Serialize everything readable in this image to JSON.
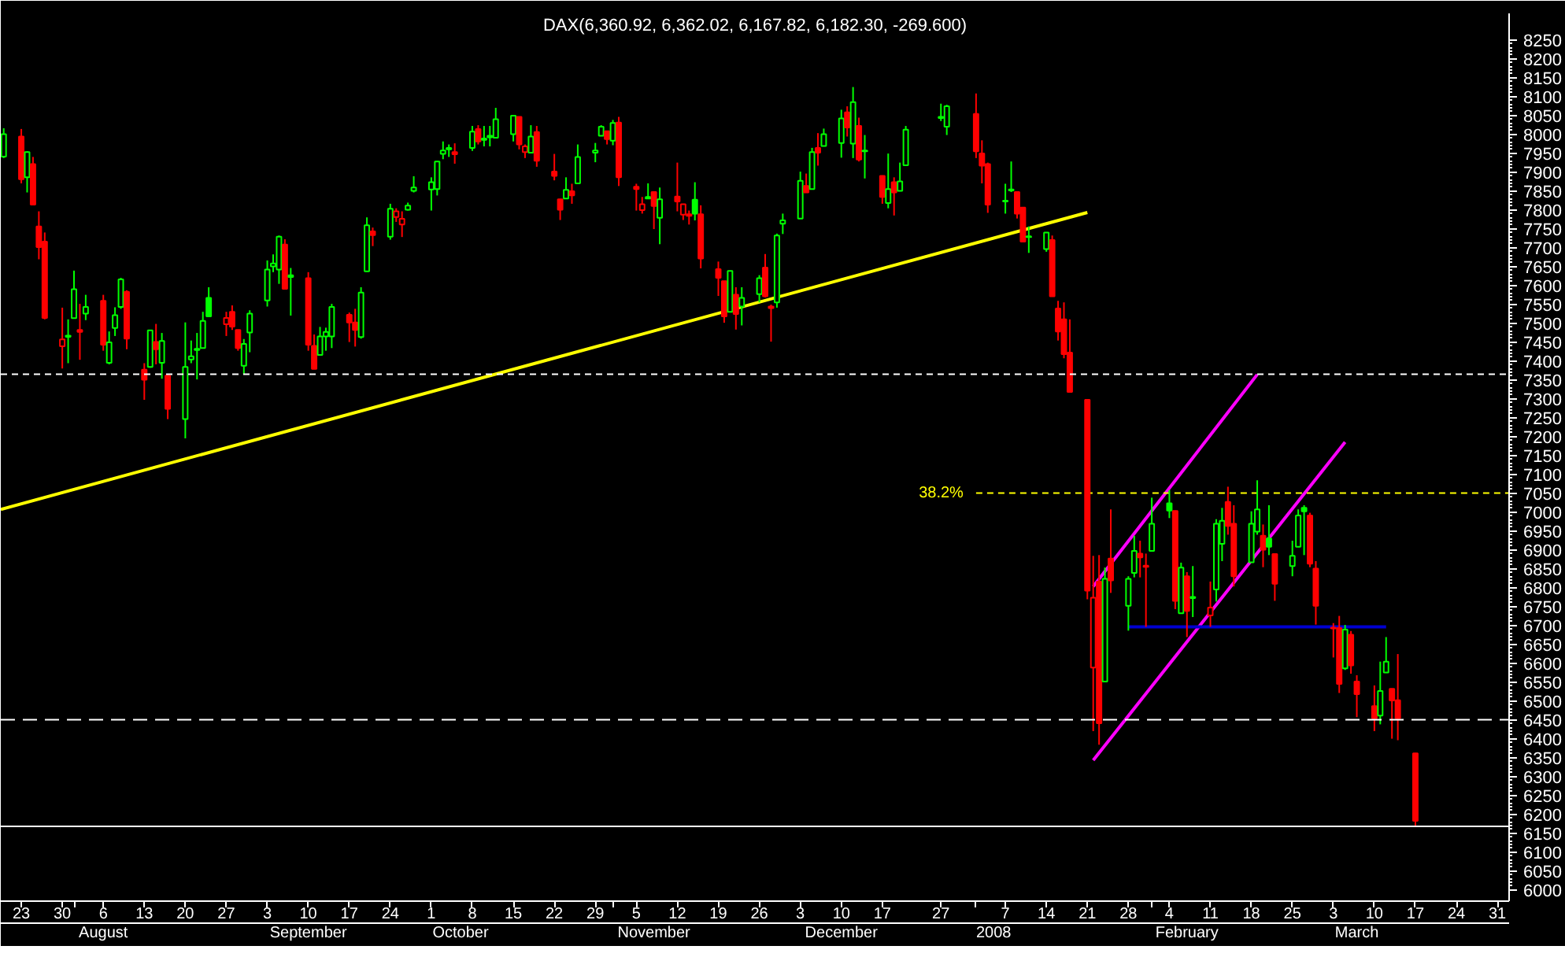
{
  "chart_data": {
    "type": "candlestick",
    "title": "DAX(6,360.92, 6,362.02, 6,167.82, 6,182.30, -269.600)",
    "x": [
      "2007-07-20",
      "2007-07-23",
      "2007-07-24",
      "2007-07-25",
      "2007-07-26",
      "2007-07-27",
      "2007-07-30",
      "2007-07-31",
      "2007-08-01",
      "2007-08-02",
      "2007-08-03",
      "2007-08-06",
      "2007-08-07",
      "2007-08-08",
      "2007-08-09",
      "2007-08-10",
      "2007-08-13",
      "2007-08-14",
      "2007-08-15",
      "2007-08-16",
      "2007-08-17",
      "2007-08-20",
      "2007-08-21",
      "2007-08-22",
      "2007-08-23",
      "2007-08-24",
      "2007-08-27",
      "2007-08-28",
      "2007-08-29",
      "2007-08-30",
      "2007-08-31",
      "2007-09-03",
      "2007-09-04",
      "2007-09-05",
      "2007-09-06",
      "2007-09-07",
      "2007-09-10",
      "2007-09-11",
      "2007-09-12",
      "2007-09-13",
      "2007-09-14",
      "2007-09-17",
      "2007-09-18",
      "2007-09-19",
      "2007-09-20",
      "2007-09-21",
      "2007-09-24",
      "2007-09-25",
      "2007-09-26",
      "2007-09-27",
      "2007-09-28",
      "2007-10-01",
      "2007-10-02",
      "2007-10-03",
      "2007-10-04",
      "2007-10-05",
      "2007-10-08",
      "2007-10-09",
      "2007-10-10",
      "2007-10-11",
      "2007-10-12",
      "2007-10-15",
      "2007-10-16",
      "2007-10-17",
      "2007-10-18",
      "2007-10-19",
      "2007-10-22",
      "2007-10-23",
      "2007-10-24",
      "2007-10-25",
      "2007-10-26",
      "2007-10-29",
      "2007-10-30",
      "2007-10-31",
      "2007-11-01",
      "2007-11-02",
      "2007-11-05",
      "2007-11-06",
      "2007-11-07",
      "2007-11-08",
      "2007-11-09",
      "2007-11-12",
      "2007-11-13",
      "2007-11-14",
      "2007-11-15",
      "2007-11-16",
      "2007-11-19",
      "2007-11-20",
      "2007-11-21",
      "2007-11-22",
      "2007-11-23",
      "2007-11-26",
      "2007-11-27",
      "2007-11-28",
      "2007-11-29",
      "2007-11-30",
      "2007-12-03",
      "2007-12-04",
      "2007-12-05",
      "2007-12-06",
      "2007-12-07",
      "2007-12-10",
      "2007-12-11",
      "2007-12-12",
      "2007-12-13",
      "2007-12-14",
      "2007-12-17",
      "2007-12-18",
      "2007-12-19",
      "2007-12-20",
      "2007-12-21",
      "2007-12-27",
      "2007-12-28",
      "2008-01-02",
      "2008-01-03",
      "2008-01-04",
      "2008-01-07",
      "2008-01-08",
      "2008-01-09",
      "2008-01-10",
      "2008-01-11",
      "2008-01-14",
      "2008-01-15",
      "2008-01-16",
      "2008-01-17",
      "2008-01-18",
      "2008-01-21",
      "2008-01-22",
      "2008-01-23",
      "2008-01-24",
      "2008-01-25",
      "2008-01-28",
      "2008-01-29",
      "2008-01-30",
      "2008-01-31",
      "2008-02-01",
      "2008-02-04",
      "2008-02-05",
      "2008-02-06",
      "2008-02-07",
      "2008-02-08",
      "2008-02-11",
      "2008-02-12",
      "2008-02-13",
      "2008-02-14",
      "2008-02-15",
      "2008-02-18",
      "2008-02-19",
      "2008-02-20",
      "2008-02-21",
      "2008-02-22",
      "2008-02-25",
      "2008-02-26",
      "2008-02-27",
      "2008-02-28",
      "2008-02-29",
      "2008-03-03",
      "2008-03-04",
      "2008-03-05",
      "2008-03-06",
      "2008-03-07",
      "2008-03-10",
      "2008-03-11",
      "2008-03-12",
      "2008-03-13",
      "2008-03-14",
      "2008-03-17"
    ],
    "ohlc": [
      [
        7941,
        8016,
        7937,
        8000
      ],
      [
        7994,
        8014,
        7870,
        7881
      ],
      [
        7886,
        7955,
        7846,
        7953
      ],
      [
        7921,
        7940,
        7812,
        7814
      ],
      [
        7756,
        7796,
        7669,
        7701
      ],
      [
        7716,
        7740,
        7510,
        7514
      ],
      [
        7439,
        7541,
        7380,
        7457
      ],
      [
        7464,
        7510,
        7394,
        7467
      ],
      [
        7513,
        7639,
        7512,
        7590
      ],
      [
        7482,
        7551,
        7403,
        7477
      ],
      [
        7525,
        7575,
        7508,
        7543
      ],
      [
        7559,
        7575,
        7427,
        7443
      ],
      [
        7395,
        7478,
        7391,
        7449
      ],
      [
        7487,
        7542,
        7466,
        7521
      ],
      [
        7543,
        7620,
        7538,
        7616
      ],
      [
        7583,
        7587,
        7431,
        7459
      ],
      [
        7377,
        7394,
        7297,
        7350
      ],
      [
        7384,
        7482,
        7382,
        7481
      ],
      [
        7450,
        7498,
        7391,
        7431
      ],
      [
        7395,
        7474,
        7353,
        7453
      ],
      [
        7361,
        7362,
        7246,
        7273
      ],
      [
        7246,
        7502,
        7195,
        7384
      ],
      [
        7404,
        7454,
        7394,
        7412
      ],
      [
        7429,
        7474,
        7351,
        7432
      ],
      [
        7434,
        7530,
        7433,
        7506
      ],
      [
        7567,
        7595,
        7517,
        7518
      ],
      [
        7497,
        7530,
        7466,
        7514
      ],
      [
        7530,
        7547,
        7482,
        7491
      ],
      [
        7482,
        7483,
        7427,
        7434
      ],
      [
        7387,
        7458,
        7364,
        7445
      ],
      [
        7475,
        7534,
        7423,
        7525
      ],
      [
        7560,
        7666,
        7544,
        7642
      ],
      [
        7650,
        7682,
        7635,
        7658
      ],
      [
        7642,
        7732,
        7604,
        7729
      ],
      [
        7708,
        7722,
        7590,
        7591
      ],
      [
        7627,
        7646,
        7520,
        7622
      ],
      [
        7619,
        7635,
        7427,
        7443
      ],
      [
        7440,
        7470,
        7378,
        7379
      ],
      [
        7416,
        7490,
        7415,
        7465
      ],
      [
        7465,
        7488,
        7427,
        7477
      ],
      [
        7465,
        7551,
        7434,
        7543
      ],
      [
        7522,
        7528,
        7450,
        7502
      ],
      [
        7502,
        7538,
        7438,
        7482
      ],
      [
        7463,
        7595,
        7459,
        7581
      ],
      [
        7637,
        7780,
        7636,
        7759
      ],
      [
        7743,
        7753,
        7704,
        7733
      ],
      [
        7729,
        7816,
        7721,
        7803
      ],
      [
        7781,
        7804,
        7768,
        7796
      ],
      [
        7761,
        7796,
        7728,
        7776
      ],
      [
        7800,
        7819,
        7798,
        7811
      ],
      [
        7850,
        7889,
        7846,
        7859
      ],
      [
        7854,
        7886,
        7798,
        7873
      ],
      [
        7855,
        7929,
        7838,
        7928
      ],
      [
        7948,
        7981,
        7934,
        7957
      ],
      [
        7960,
        7973,
        7940,
        7964
      ],
      [
        7953,
        7976,
        7922,
        7947
      ],
      [
        7964,
        8022,
        7956,
        8007
      ],
      [
        8014,
        8024,
        7973,
        7981
      ],
      [
        7985,
        8022,
        7968,
        7989
      ],
      [
        7992,
        8022,
        7968,
        7996
      ],
      [
        7991,
        8070,
        7990,
        8040
      ],
      [
        8000,
        8050,
        7981,
        8049
      ],
      [
        8046,
        8047,
        7960,
        7973
      ],
      [
        7953,
        7973,
        7937,
        7968
      ],
      [
        7951,
        8024,
        7950,
        7994
      ],
      [
        8006,
        8022,
        7914,
        7930
      ],
      [
        7901,
        7948,
        7878,
        7890
      ],
      [
        7828,
        7829,
        7773,
        7800
      ],
      [
        7830,
        7886,
        7829,
        7853
      ],
      [
        7849,
        7869,
        7816,
        7838
      ],
      [
        7870,
        7973,
        7869,
        7940
      ],
      [
        7951,
        7977,
        7926,
        7957
      ],
      [
        7996,
        8024,
        7995,
        8020
      ],
      [
        8008,
        8009,
        7973,
        7987
      ],
      [
        7983,
        8038,
        7971,
        8030
      ],
      [
        8031,
        8046,
        7863,
        7886
      ],
      [
        7861,
        7869,
        7798,
        7855
      ],
      [
        7799,
        7834,
        7790,
        7815
      ],
      [
        7830,
        7870,
        7829,
        7834
      ],
      [
        7847,
        7848,
        7749,
        7810
      ],
      [
        7779,
        7859,
        7709,
        7828
      ],
      [
        7835,
        7925,
        7796,
        7822
      ],
      [
        7787,
        7816,
        7773,
        7815
      ],
      [
        7788,
        7798,
        7761,
        7784
      ],
      [
        7827,
        7873,
        7772,
        7790
      ],
      [
        7788,
        7812,
        7645,
        7671
      ],
      [
        7643,
        7663,
        7572,
        7620
      ],
      [
        7611,
        7612,
        7501,
        7518
      ],
      [
        7530,
        7639,
        7529,
        7638
      ],
      [
        7575,
        7595,
        7483,
        7524
      ],
      [
        7544,
        7595,
        7494,
        7567
      ],
      [
        7577,
        7627,
        7555,
        7619
      ],
      [
        7647,
        7683,
        7568,
        7571
      ],
      [
        7544,
        7549,
        7451,
        7540
      ],
      [
        7555,
        7737,
        7541,
        7732
      ],
      [
        7763,
        7790,
        7736,
        7772
      ],
      [
        7777,
        7901,
        7777,
        7877
      ],
      [
        7863,
        7896,
        7845,
        7846
      ],
      [
        7855,
        7964,
        7854,
        7953
      ],
      [
        7964,
        8003,
        7917,
        7951
      ],
      [
        7969,
        8015,
        7968,
        8000
      ],
      [
        7977,
        8065,
        7938,
        8042
      ],
      [
        8058,
        8074,
        7994,
        8018
      ],
      [
        7975,
        8125,
        7937,
        8085
      ],
      [
        8022,
        8044,
        7928,
        7933
      ],
      [
        7955,
        7998,
        7883,
        7957
      ],
      [
        7890,
        7891,
        7816,
        7834
      ],
      [
        7818,
        7949,
        7804,
        7855
      ],
      [
        7873,
        7886,
        7785,
        7846
      ],
      [
        7850,
        7925,
        7849,
        7875
      ],
      [
        7918,
        8022,
        7917,
        8012
      ],
      [
        8043,
        8081,
        8035,
        8046
      ],
      [
        8020,
        8078,
        7998,
        8074
      ],
      [
        8054,
        8108,
        7937,
        7955
      ],
      [
        7949,
        7984,
        7870,
        7917
      ],
      [
        7921,
        7925,
        7792,
        7814
      ],
      [
        7822,
        7869,
        7790,
        7824
      ],
      [
        7851,
        7928,
        7847,
        7854
      ],
      [
        7847,
        7848,
        7777,
        7790
      ],
      [
        7806,
        7807,
        7715,
        7716
      ],
      [
        7728,
        7756,
        7686,
        7730
      ],
      [
        7696,
        7741,
        7689,
        7740
      ],
      [
        7720,
        7732,
        7570,
        7571
      ],
      [
        7539,
        7559,
        7454,
        7478
      ],
      [
        7510,
        7555,
        7407,
        7418
      ],
      [
        7422,
        7510,
        7317,
        7318
      ],
      [
        7297,
        7298,
        6769,
        6792
      ],
      [
        6588,
        6884,
        6420,
        6773
      ],
      [
        6816,
        6886,
        6384,
        6441
      ],
      [
        6551,
        6853,
        6550,
        6823
      ],
      [
        6877,
        7007,
        6786,
        6819
      ],
      [
        6752,
        6830,
        6686,
        6823
      ],
      [
        6839,
        6937,
        6827,
        6897
      ],
      [
        6890,
        6924,
        6827,
        6880
      ],
      [
        6858,
        6890,
        6696,
        6855
      ],
      [
        6897,
        7038,
        6896,
        6969
      ],
      [
        7023,
        7058,
        6984,
        7004
      ],
      [
        7003,
        7004,
        6743,
        6765
      ],
      [
        6732,
        6866,
        6731,
        6853
      ],
      [
        6830,
        6841,
        6669,
        6738
      ],
      [
        6772,
        6857,
        6722,
        6775
      ],
      [
        6726,
        6816,
        6696,
        6747
      ],
      [
        6795,
        6981,
        6763,
        6969
      ],
      [
        6916,
        7011,
        6870,
        6977
      ],
      [
        7027,
        7067,
        6940,
        6963
      ],
      [
        6969,
        7018,
        6803,
        6830
      ],
      [
        6867,
        7002,
        6866,
        6969
      ],
      [
        6948,
        7084,
        6940,
        7007
      ],
      [
        6937,
        6967,
        6854,
        6900
      ],
      [
        6930,
        7018,
        6886,
        6908
      ],
      [
        6889,
        6890,
        6765,
        6810
      ],
      [
        6857,
        6924,
        6830,
        6884
      ],
      [
        6908,
        7007,
        6907,
        6991
      ],
      [
        7011,
        7018,
        6886,
        7002
      ],
      [
        6991,
        6998,
        6854,
        6863
      ],
      [
        6850,
        6870,
        6702,
        6752
      ],
      [
        6694,
        6706,
        6615,
        6692
      ],
      [
        6693,
        6725,
        6521,
        6545
      ],
      [
        6586,
        6701,
        6582,
        6689
      ],
      [
        6675,
        6685,
        6572,
        6594
      ],
      [
        6551,
        6568,
        6457,
        6518
      ],
      [
        6486,
        6541,
        6420,
        6454
      ],
      [
        6461,
        6604,
        6438,
        6526
      ],
      [
        6575,
        6669,
        6574,
        6604
      ],
      [
        6532,
        6533,
        6400,
        6501
      ],
      [
        6502,
        6624,
        6396,
        6454
      ],
      [
        6360.92,
        6362.02,
        6167.82,
        6182.3
      ]
    ],
    "colors": [
      "#00ff00",
      "#ff0000",
      "#00ff00",
      "#ff0000",
      "#ff0000",
      "#ff0000",
      "#ff0000",
      "#00ff00",
      "#00ff00",
      "#ff0000",
      "#00ff00",
      "#ff0000",
      "#00ff00",
      "#00ff00",
      "#00ff00",
      "#ff0000",
      "#ff0000",
      "#00ff00",
      "#ff0000",
      "#00ff00",
      "#ff0000",
      "#00ff00",
      "#00ff00",
      "#00ff00",
      "#00ff00",
      "#00ff00",
      "#ff0000",
      "#ff0000",
      "#ff0000",
      "#00ff00",
      "#00ff00",
      "#00ff00",
      "#00ff00",
      "#00ff00",
      "#ff0000",
      "#00ff00",
      "#ff0000",
      "#ff0000",
      "#00ff00",
      "#00ff00",
      "#00ff00",
      "#ff0000",
      "#ff0000",
      "#00ff00",
      "#00ff00",
      "#ff0000",
      "#00ff00",
      "#ff0000",
      "#ff0000",
      "#00ff00",
      "#00ff00",
      "#00ff00",
      "#00ff00",
      "#00ff00",
      "#00ff00",
      "#ff0000",
      "#00ff00",
      "#ff0000",
      "#00ff00",
      "#00ff00",
      "#00ff00",
      "#00ff00",
      "#ff0000",
      "#ff0000",
      "#00ff00",
      "#ff0000",
      "#ff0000",
      "#ff0000",
      "#00ff00",
      "#ff0000",
      "#00ff00",
      "#00ff00",
      "#00ff00",
      "#ff0000",
      "#00ff00",
      "#ff0000",
      "#ff0000",
      "#ff0000",
      "#00ff00",
      "#ff0000",
      "#00ff00",
      "#ff0000",
      "#ff0000",
      "#ff0000",
      "#00ff00",
      "#ff0000",
      "#ff0000",
      "#ff0000",
      "#00ff00",
      "#ff0000",
      "#00ff00",
      "#00ff00",
      "#ff0000",
      "#ff0000",
      "#00ff00",
      "#00ff00",
      "#00ff00",
      "#ff0000",
      "#00ff00",
      "#ff0000",
      "#00ff00",
      "#00ff00",
      "#ff0000",
      "#00ff00",
      "#ff0000",
      "#00ff00",
      "#ff0000",
      "#00ff00",
      "#ff0000",
      "#00ff00",
      "#00ff00",
      "#00ff00",
      "#00ff00",
      "#ff0000",
      "#ff0000",
      "#ff0000",
      "#00ff00",
      "#00ff00",
      "#ff0000",
      "#ff0000",
      "#00ff00",
      "#00ff00",
      "#ff0000",
      "#ff0000",
      "#ff0000",
      "#ff0000",
      "#ff0000",
      "#ff0000",
      "#ff0000",
      "#00ff00",
      "#ff0000",
      "#00ff00",
      "#00ff00",
      "#ff0000",
      "#ff0000",
      "#00ff00",
      "#00ff00",
      "#ff0000",
      "#00ff00",
      "#ff0000",
      "#00ff00",
      "#ff0000",
      "#00ff00",
      "#00ff00",
      "#ff0000",
      "#ff0000",
      "#00ff00",
      "#00ff00",
      "#ff0000",
      "#00ff00",
      "#ff0000",
      "#00ff00",
      "#00ff00",
      "#00ff00",
      "#ff0000",
      "#ff0000",
      "#ff0000",
      "#ff0000",
      "#00ff00",
      "#ff0000",
      "#ff0000",
      "#ff0000",
      "#00ff00",
      "#00ff00",
      "#ff0000",
      "#ff0000",
      "#ff0000"
    ],
    "series": [
      {
        "type": "line",
        "x": [
          "2007-07-19T12:00",
          "2008-01-21"
        ],
        "values": [
          7007,
          7793
        ],
        "color": "#ffff00"
      },
      {
        "type": "line",
        "x": [
          "2008-01-22",
          "2008-02-19"
        ],
        "values": [
          6803,
          7364
        ],
        "color": "#ff00ff"
      },
      {
        "type": "line",
        "x": [
          "2008-01-22",
          "2008-03-05"
        ],
        "values": [
          6343,
          7185
        ],
        "color": "#ff00ff"
      },
      {
        "type": "line",
        "x": [
          "2008-01-28",
          "2008-03-12"
        ],
        "values": [
          6696,
          6696
        ],
        "color": "#0000d0"
      },
      {
        "type": "line",
        "name": "38.2%",
        "x": [
          "2008-01-02",
          "2008-04-02"
        ],
        "values": [
          7050,
          7050
        ],
        "color": "#ffff00",
        "line_style": "dotted"
      }
    ],
    "ref_lines": [
      {
        "axis": "y",
        "value": 7365,
        "color": "#ffffff",
        "line_style": "dotted"
      },
      {
        "axis": "y",
        "value": 6450,
        "color": "#ffffff",
        "line_style": "dashed"
      },
      {
        "axis": "y",
        "value": 6168,
        "color": "#ffffff",
        "line_style": "solid"
      }
    ],
    "xlim": [
      "2007-07-19T12:00",
      "2008-04-02"
    ],
    "xticks": [
      {
        "value": "2007-07-23",
        "label": "23"
      },
      {
        "value": "2007-07-30",
        "label": "30"
      },
      {
        "value": "2007-08-01",
        "label": null
      },
      {
        "value": "2007-08-06",
        "label": "6"
      },
      {
        "value": "2007-08-13",
        "label": "13"
      },
      {
        "value": "2007-08-20",
        "label": "20"
      },
      {
        "value": "2007-08-27",
        "label": "27"
      },
      {
        "value": "2007-09-03",
        "label": "3"
      },
      {
        "value": "2007-09-10",
        "label": "10"
      },
      {
        "value": "2007-09-17",
        "label": "17"
      },
      {
        "value": "2007-09-24",
        "label": "24"
      },
      {
        "value": "2007-10-01",
        "label": "1"
      },
      {
        "value": "2007-10-08",
        "label": "8"
      },
      {
        "value": "2007-10-15",
        "label": "15"
      },
      {
        "value": "2007-10-22",
        "label": "22"
      },
      {
        "value": "2007-10-29",
        "label": "29"
      },
      {
        "value": "2007-11-01",
        "label": null
      },
      {
        "value": "2007-11-05",
        "label": "5"
      },
      {
        "value": "2007-11-12",
        "label": "12"
      },
      {
        "value": "2007-11-19",
        "label": "19"
      },
      {
        "value": "2007-11-26",
        "label": "26"
      },
      {
        "value": "2007-12-03",
        "label": "3"
      },
      {
        "value": "2007-12-10",
        "label": "10"
      },
      {
        "value": "2007-12-17",
        "label": "17"
      },
      {
        "value": "2007-12-27",
        "label": "27"
      },
      {
        "value": "2008-01-02",
        "label": null
      },
      {
        "value": "2008-01-07",
        "label": "7"
      },
      {
        "value": "2008-01-14",
        "label": "14"
      },
      {
        "value": "2008-01-21",
        "label": "21"
      },
      {
        "value": "2008-01-28",
        "label": "28"
      },
      {
        "value": "2008-02-01",
        "label": null
      },
      {
        "value": "2008-02-04",
        "label": "4"
      },
      {
        "value": "2008-02-11",
        "label": "11"
      },
      {
        "value": "2008-02-18",
        "label": "18"
      },
      {
        "value": "2008-02-25",
        "label": "25"
      },
      {
        "value": "2008-03-03",
        "label": "3"
      },
      {
        "value": "2008-03-10",
        "label": "10"
      },
      {
        "value": "2008-03-17",
        "label": "17"
      },
      {
        "value": "2008-03-24",
        "label": "24"
      },
      {
        "value": "2008-03-31",
        "label": "31"
      }
    ],
    "x2lim": [
      "2007-07-19T12:00",
      "2008-04-02"
    ],
    "x2ticks": [
      {
        "value": "2007-08-06",
        "label": "August"
      },
      {
        "value": "2007-09-10",
        "label": "September"
      },
      {
        "value": "2007-10-06",
        "label": "October"
      },
      {
        "value": "2007-11-08",
        "label": "November"
      },
      {
        "value": "2007-12-10",
        "label": "December"
      },
      {
        "value": "2008-01-05",
        "label": "2008"
      },
      {
        "value": "2008-02-07",
        "label": "February"
      },
      {
        "value": "2008-03-07",
        "label": "March"
      }
    ],
    "ylim": [
      5970,
      8320
    ],
    "yticks": [
      6000,
      6050,
      6100,
      6150,
      6200,
      6250,
      6300,
      6350,
      6400,
      6450,
      6500,
      6550,
      6600,
      6650,
      6700,
      6750,
      6800,
      6850,
      6900,
      6950,
      7000,
      7050,
      7100,
      7150,
      7200,
      7250,
      7300,
      7350,
      7400,
      7450,
      7500,
      7550,
      7600,
      7650,
      7700,
      7750,
      7800,
      7850,
      7900,
      7950,
      8000,
      8050,
      8100,
      8150,
      8200,
      8250
    ]
  }
}
